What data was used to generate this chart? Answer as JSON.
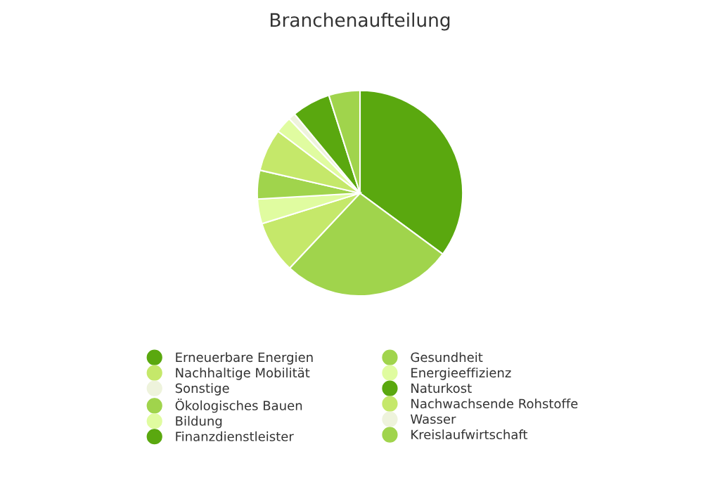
{
  "chart_data": {
    "type": "pie",
    "title": "Branchenaufteilung",
    "categories": [
      "Erneuerbare Energien",
      "Gesundheit",
      "Nachhaltige Mobilität",
      "Energieeffizienz",
      "Sonstige",
      "Naturkost",
      "Ökologisches Bauen",
      "Nachwachsende Rohstoffe",
      "Bildung",
      "Wasser",
      "Finanzdienstleister",
      "Kreislaufwirtschaft"
    ],
    "values": [
      35.1,
      26.9,
      8.2,
      3.9,
      0,
      0,
      4.5,
      6.7,
      2.6,
      1.1,
      6.1,
      4.9
    ],
    "colors": [
      "#5aa80f",
      "#a0d44c",
      "#c5e86a",
      "#e0fca0",
      "#eef3dc",
      "#5aa80f",
      "#a0d44c",
      "#c5e86a",
      "#e0fca0",
      "#eef3dc",
      "#5aa80f",
      "#a0d44c"
    ],
    "legend": "bottom"
  }
}
